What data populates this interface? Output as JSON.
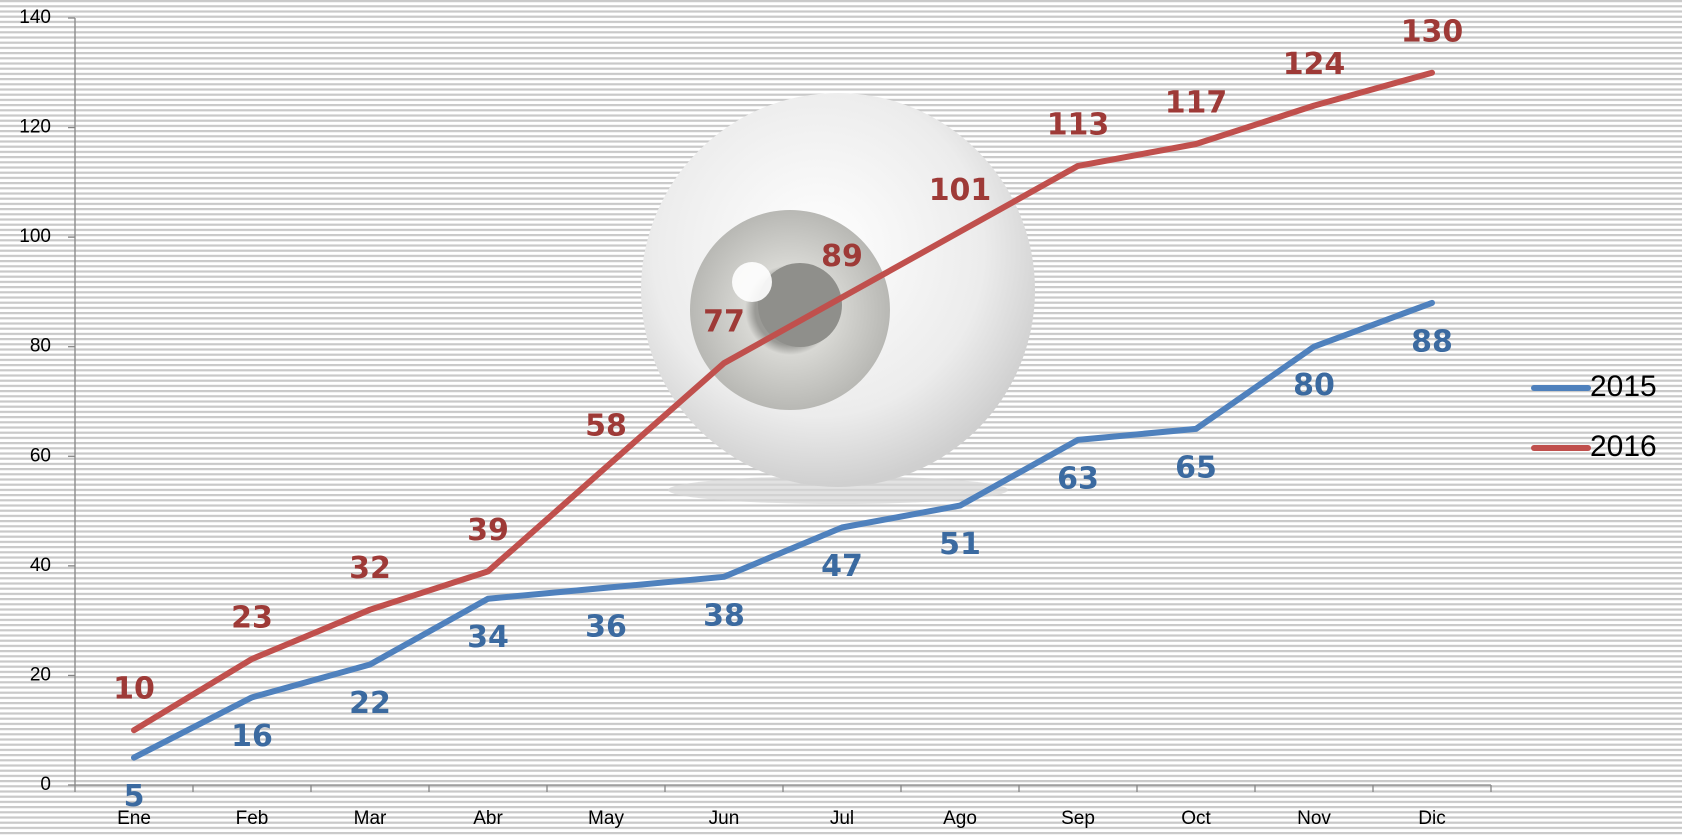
{
  "chart_data": {
    "type": "line",
    "categories": [
      "Ene",
      "Feb",
      "Mar",
      "Abr",
      "May",
      "Jun",
      "Jul",
      "Ago",
      "Sep",
      "Oct",
      "Nov",
      "Dic"
    ],
    "series": [
      {
        "name": "2015",
        "color": "#4f81bd",
        "label_color": "#3b6aa0",
        "values": [
          5,
          16,
          22,
          34,
          36,
          38,
          47,
          51,
          63,
          65,
          80,
          88
        ]
      },
      {
        "name": "2016",
        "color": "#c0504d",
        "label_color": "#9e3a37",
        "values": [
          10,
          23,
          32,
          39,
          58,
          77,
          89,
          101,
          113,
          117,
          124,
          130
        ]
      }
    ],
    "ylim": [
      0,
      140
    ],
    "yticks": [
      0,
      20,
      40,
      60,
      80,
      100,
      120,
      140
    ],
    "legend": "right"
  }
}
